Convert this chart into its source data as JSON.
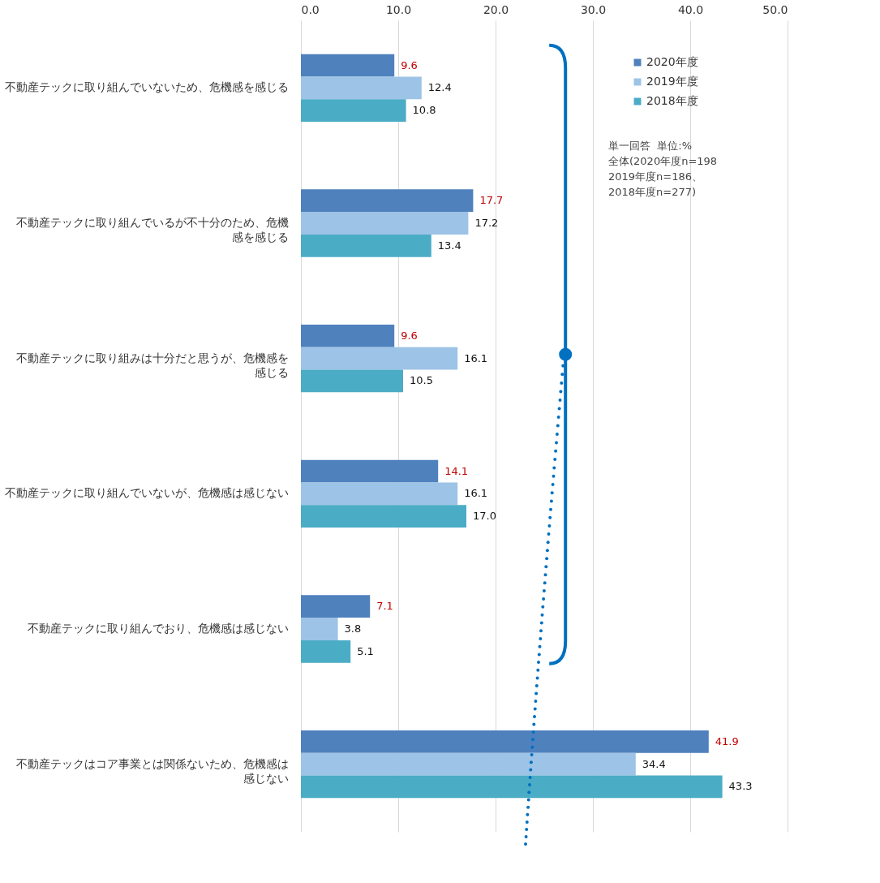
{
  "chart_data": {
    "type": "bar",
    "orientation": "horizontal",
    "categories": [
      "不動産テックに取り組んでいないため、危機感を感じる",
      "不動産テックに取り組んでいるが不十分のため、危機感を感じる",
      "不動産テックに取り組みは十分だと思うが、危機感を感じる",
      "不動産テックに取り組んでいないが、危機感は感じない",
      "不動産テックに取り組んでおり、危機感は感じない",
      "不動産テックはコア事業とは関係ないため、危機感は感じない"
    ],
    "series": [
      {
        "name": "2020年度",
        "color": "#4f81bd",
        "values": [
          9.6,
          17.7,
          9.6,
          14.1,
          7.1,
          41.9
        ],
        "value_labels": [
          "9.6",
          "17.7",
          "9.6",
          "14.1",
          "7.1",
          "41.9"
        ]
      },
      {
        "name": "2019年度",
        "color": "#9dc3e6",
        "values": [
          12.4,
          17.2,
          16.1,
          16.1,
          3.8,
          34.4
        ],
        "value_labels": [
          "12.4",
          "17.2",
          "16.1",
          "16.1",
          "3.8",
          "34.4"
        ]
      },
      {
        "name": "2018年度",
        "color": "#4bacc6",
        "values": [
          10.8,
          13.4,
          10.5,
          17.0,
          5.1,
          43.3
        ],
        "value_labels": [
          "10.8",
          "13.4",
          "10.5",
          "17.0",
          "5.1",
          "43.3"
        ]
      }
    ],
    "xlim": [
      0,
      50
    ],
    "xticks": [
      {
        "value": 0,
        "label": "0.0"
      },
      {
        "value": 10,
        "label": "10.0"
      },
      {
        "value": 20,
        "label": "20.0"
      },
      {
        "value": 30,
        "label": "30.0"
      },
      {
        "value": 40,
        "label": "40.0"
      },
      {
        "value": 50,
        "label": "50.0"
      }
    ],
    "grid": "x",
    "legend": "top right",
    "annotations": [
      "単一回答  単位:%\n全体(2020年度n=198\n2019年度n=186、\n2018年度n=277)"
    ]
  }
}
